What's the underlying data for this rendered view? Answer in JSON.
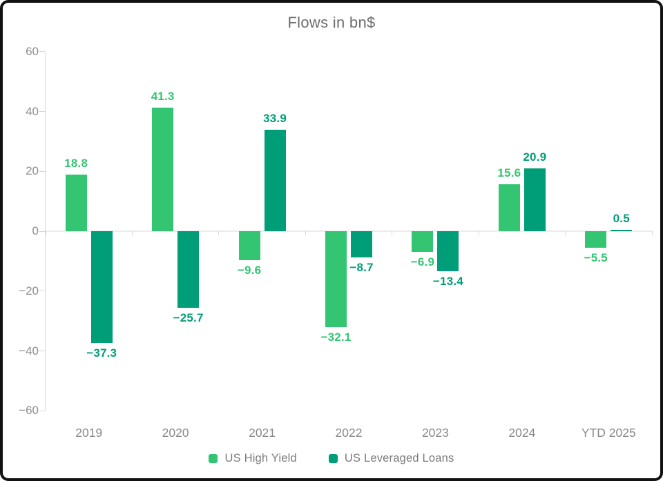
{
  "chart_data": {
    "type": "bar",
    "title": "Flows in bn$",
    "categories": [
      "2019",
      "2020",
      "2021",
      "2022",
      "2023",
      "2024",
      "YTD 2025"
    ],
    "series": [
      {
        "name": "US High Yield",
        "color": "#33c572",
        "values": [
          18.8,
          41.3,
          -9.6,
          -32.1,
          -6.9,
          15.6,
          -5.5
        ]
      },
      {
        "name": "US Leveraged Loans",
        "color": "#009e78",
        "values": [
          -37.3,
          -25.7,
          33.9,
          -8.7,
          -13.4,
          20.9,
          0.5
        ]
      }
    ],
    "y_ticks": [
      60,
      40,
      20,
      0,
      -20,
      -40,
      -60
    ],
    "ylim": [
      -60,
      60
    ],
    "xlabel": "",
    "ylabel": "",
    "grid": "zero-line-only",
    "legend_position": "bottom",
    "colors": {
      "axis_line": "#d9d9d9",
      "tick_text": "#8e8e8e",
      "title_text": "#6d6d6d",
      "frame_border": "#111111"
    }
  }
}
